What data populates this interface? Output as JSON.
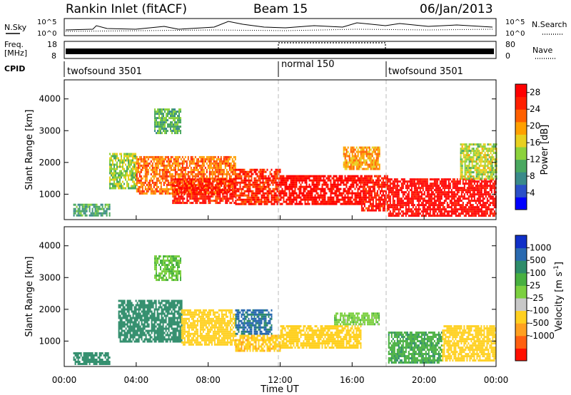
{
  "header": {
    "site": "Rankin Inlet (fitACF)",
    "beam": "Beam 15",
    "date": "06/Jan/2013"
  },
  "strip": {
    "nsky_label": "N.Sky",
    "nsky_ticks": [
      "10^5",
      "10^0"
    ],
    "nsearch_label": "N.Search",
    "freq_label_1": "Freq.",
    "freq_label_2": "[MHz]",
    "freq_ticks": [
      "18",
      "8"
    ],
    "nave_ticks": [
      "80",
      "0"
    ],
    "nave_label": "Nave",
    "cpid_label": "CPID",
    "cpid_segments": [
      {
        "name": "twofsound 3501",
        "start_hour": 0,
        "end_hour": 12
      },
      {
        "name": "normal 150",
        "start_hour": 12,
        "end_hour": 18
      },
      {
        "name": "twofsound 3501",
        "start_hour": 18,
        "end_hour": 24
      }
    ]
  },
  "chart_data": [
    {
      "type": "heatmap",
      "title": "Power",
      "xlabel": "Time UT",
      "ylabel": "Slant Range [km]",
      "x_ticks": [
        "00:00",
        "04:00",
        "08:00",
        "12:00",
        "16:00",
        "20:00",
        "00:00"
      ],
      "xlim_hours": [
        0,
        24
      ],
      "y_ticks": [
        1000,
        2000,
        3000,
        4000
      ],
      "ylim": [
        200,
        4600
      ],
      "colorbar": {
        "label": "Power [dB]",
        "ticks": [
          "28",
          "24",
          "20",
          "16",
          "12",
          "8",
          "4"
        ],
        "range": [
          0,
          30
        ],
        "colors": [
          "#0000ff",
          "#2b50c8",
          "#3a8a8a",
          "#4aa860",
          "#8cd23c",
          "#e8d020",
          "#ffa000",
          "#ff6000",
          "#ff2000",
          "#ff0000"
        ]
      },
      "bands": [
        {
          "start_hour": 0.5,
          "end_hour": 2.5,
          "range_min": 300,
          "range_max": 700,
          "value": 10
        },
        {
          "start_hour": 2.5,
          "end_hour": 4.0,
          "range_min": 1200,
          "range_max": 2300,
          "value": 14
        },
        {
          "start_hour": 4.0,
          "end_hour": 9.5,
          "range_min": 1000,
          "range_max": 2200,
          "value": 22
        },
        {
          "start_hour": 6.0,
          "end_hour": 9.5,
          "range_min": 700,
          "range_max": 1500,
          "value": 27
        },
        {
          "start_hour": 9.5,
          "end_hour": 12.0,
          "range_min": 700,
          "range_max": 1800,
          "value": 26
        },
        {
          "start_hour": 12.0,
          "end_hour": 16.5,
          "range_min": 700,
          "range_max": 1600,
          "value": 28
        },
        {
          "start_hour": 16.5,
          "end_hour": 18.0,
          "range_min": 500,
          "range_max": 1600,
          "value": 27
        },
        {
          "start_hour": 18.0,
          "end_hour": 24.0,
          "range_min": 350,
          "range_max": 1500,
          "value": 29
        },
        {
          "start_hour": 22.0,
          "end_hour": 24.0,
          "range_min": 1500,
          "range_max": 2600,
          "value": 15
        },
        {
          "start_hour": 5.0,
          "end_hour": 6.5,
          "range_min": 2900,
          "range_max": 3700,
          "value": 11
        },
        {
          "start_hour": 15.5,
          "end_hour": 17.5,
          "range_min": 1800,
          "range_max": 2500,
          "value": 20
        }
      ]
    },
    {
      "type": "heatmap",
      "title": "Velocity",
      "xlabel": "Time UT",
      "ylabel": "Slant Range [km]",
      "x_ticks": [
        "00:00",
        "04:00",
        "08:00",
        "12:00",
        "16:00",
        "20:00",
        "00:00"
      ],
      "xlim_hours": [
        0,
        24
      ],
      "y_ticks": [
        1000,
        2000,
        3000,
        4000
      ],
      "ylim": [
        200,
        4600
      ],
      "colorbar": {
        "label": "Velocity [m s^-1]",
        "ticks": [
          "1000",
          "500",
          "100",
          "25",
          "-25",
          "-100",
          "-500",
          "-1000"
        ],
        "colors": [
          "#1030c8",
          "#2a6ab0",
          "#2e8c6a",
          "#48b040",
          "#7cd040",
          "#c8c8c8",
          "#ffd020",
          "#ffa020",
          "#ff6010",
          "#ff1000"
        ]
      },
      "bands": [
        {
          "start_hour": 0.5,
          "end_hour": 2.5,
          "range_min": 250,
          "range_max": 650,
          "value": 200
        },
        {
          "start_hour": 3.0,
          "end_hour": 6.5,
          "range_min": 1000,
          "range_max": 2300,
          "value": 300
        },
        {
          "start_hour": 6.5,
          "end_hour": 9.5,
          "range_min": 900,
          "range_max": 2000,
          "value": -300
        },
        {
          "start_hour": 9.5,
          "end_hour": 11.5,
          "range_min": 1200,
          "range_max": 2000,
          "value": 600
        },
        {
          "start_hour": 9.5,
          "end_hour": 12.0,
          "range_min": 700,
          "range_max": 1200,
          "value": -400
        },
        {
          "start_hour": 12.0,
          "end_hour": 16.5,
          "range_min": 800,
          "range_max": 1500,
          "value": -300
        },
        {
          "start_hour": 15.0,
          "end_hour": 17.5,
          "range_min": 1500,
          "range_max": 1900,
          "value": 0
        },
        {
          "start_hour": 18.0,
          "end_hour": 21.0,
          "range_min": 300,
          "range_max": 1300,
          "value": 80
        },
        {
          "start_hour": 21.0,
          "end_hour": 24.0,
          "range_min": 400,
          "range_max": 1500,
          "value": -250
        },
        {
          "start_hour": 5.0,
          "end_hour": 6.5,
          "range_min": 2900,
          "range_max": 3700,
          "value": 20
        }
      ]
    }
  ]
}
